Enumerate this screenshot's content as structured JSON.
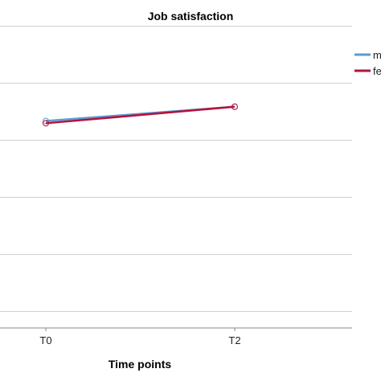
{
  "chart_data": {
    "type": "line",
    "title": "Job satisfaction",
    "xlabel": "Time points",
    "ylabel": "",
    "categories": [
      "T0",
      "T2"
    ],
    "ylim": [
      0,
      5.3
    ],
    "gridlines": [
      0.3,
      1.3,
      2.3,
      3.3,
      4.3,
      5.3
    ],
    "grid": true,
    "legend_position": "right",
    "series": [
      {
        "name": "m",
        "values": [
          3.63,
          3.88
        ],
        "color": "#5b9bd5"
      },
      {
        "name": "fe",
        "values": [
          3.59,
          3.88
        ],
        "color": "#b5123a"
      }
    ]
  }
}
